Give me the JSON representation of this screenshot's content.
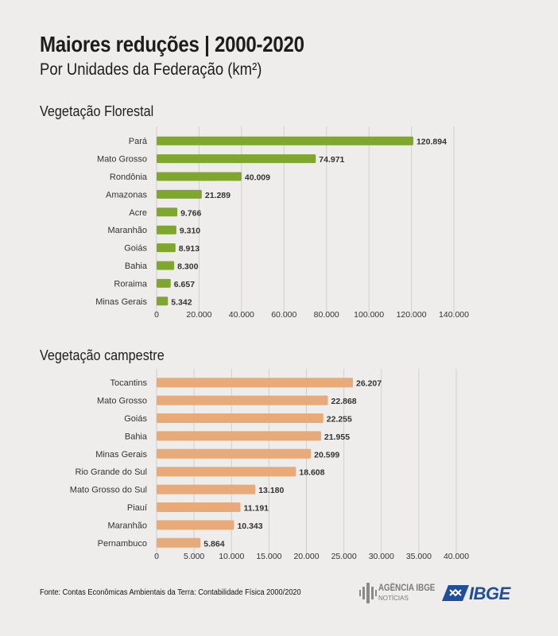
{
  "header": {
    "title": "Maiores reduções | 2000-2020",
    "subtitle": "Por Unidades da Federação (km²)"
  },
  "chart_data": [
    {
      "type": "bar",
      "orientation": "horizontal",
      "title": "Vegetação Florestal",
      "categories": [
        "Pará",
        "Mato Grosso",
        "Rondônia",
        "Amazonas",
        "Acre",
        "Maranhão",
        "Goiás",
        "Bahia",
        "Roraima",
        "Minas Gerais"
      ],
      "values": [
        120894,
        74971,
        40009,
        21289,
        9766,
        9310,
        8913,
        8300,
        6657,
        5342
      ],
      "value_labels": [
        "120.894",
        "74.971",
        "40.009",
        "21.289",
        "9.766",
        "9.310",
        "8.913",
        "8.300",
        "6.657",
        "5.342"
      ],
      "xlim": [
        0,
        140000
      ],
      "xticks": [
        0,
        20000,
        40000,
        60000,
        80000,
        100000,
        120000,
        140000
      ],
      "xtick_labels": [
        "0",
        "20.000",
        "40.000",
        "60.000",
        "80.000",
        "100.000",
        "120.000",
        "140.000"
      ],
      "color": "#7fa72e",
      "grid": true
    },
    {
      "type": "bar",
      "orientation": "horizontal",
      "title": "Vegetação campestre",
      "categories": [
        "Tocantins",
        "Mato Grosso",
        "Goiás",
        "Bahia",
        "Minas Gerais",
        "Rio Grande do Sul",
        "Mato Grosso do Sul",
        "Piauí",
        "Maranhão",
        "Pernambuco"
      ],
      "values": [
        26207,
        22868,
        22255,
        21955,
        20599,
        18608,
        13180,
        11191,
        10343,
        5864
      ],
      "value_labels": [
        "26.207",
        "22.868",
        "22.255",
        "21.955",
        "20.599",
        "18.608",
        "13.180",
        "11.191",
        "10.343",
        "5.864"
      ],
      "xlim": [
        0,
        40000
      ],
      "xticks": [
        0,
        5000,
        10000,
        15000,
        20000,
        25000,
        30000,
        35000,
        40000
      ],
      "xtick_labels": [
        "0",
        "5.000",
        "10.000",
        "15.000",
        "20.000",
        "25.000",
        "30.000",
        "35.000",
        "40.000"
      ],
      "color": "#e8aa78",
      "grid": true
    }
  ],
  "footer": {
    "source": "Fonte: Contas Econômicas Ambientais da Terra: Contabilidade Física 2000/2020"
  },
  "logos": {
    "agencia_main": "AGÊNCIA IBGE",
    "agencia_sub": "NOTÍCIAS",
    "ibge": "IBGE"
  }
}
